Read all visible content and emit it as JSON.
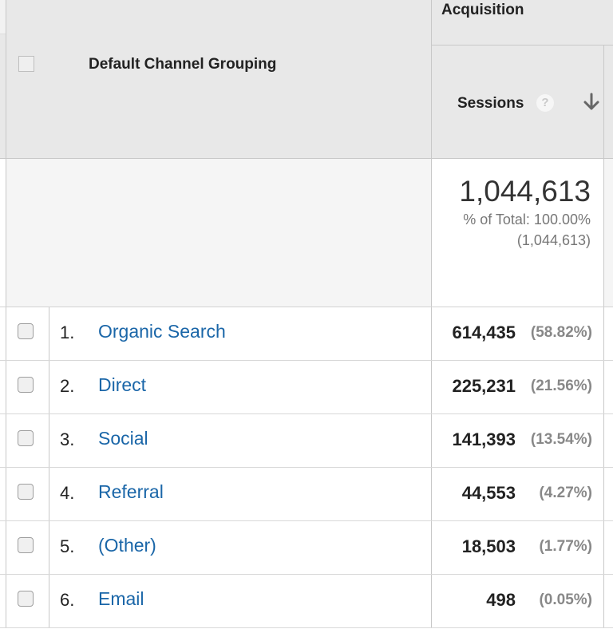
{
  "header": {
    "dimension_title": "Default Channel Grouping",
    "group_title": "Acquisition",
    "metric_title": "Sessions",
    "help_glyph": "?",
    "icons": {
      "help": "help-circle-icon",
      "sort": "arrow-down-icon"
    }
  },
  "totals": {
    "value": "1,044,613",
    "pct_label": "% of Total: 100.00%",
    "abs_label": "(1,044,613)"
  },
  "rows": [
    {
      "index": "1.",
      "channel": "Organic Search",
      "sessions": "614,435",
      "pct": "(58.82%)"
    },
    {
      "index": "2.",
      "channel": "Direct",
      "sessions": "225,231",
      "pct": "(21.56%)"
    },
    {
      "index": "3.",
      "channel": "Social",
      "sessions": "141,393",
      "pct": "(13.54%)"
    },
    {
      "index": "4.",
      "channel": "Referral",
      "sessions": "44,553",
      "pct": "(4.27%)"
    },
    {
      "index": "5.",
      "channel": "(Other)",
      "sessions": "18,503",
      "pct": "(1.77%)"
    },
    {
      "index": "6.",
      "channel": "Email",
      "sessions": "498",
      "pct": "(0.05%)"
    }
  ],
  "colors": {
    "link": "#1a66a8",
    "header_bg": "#e8e8e8",
    "muted_text": "#888888"
  }
}
